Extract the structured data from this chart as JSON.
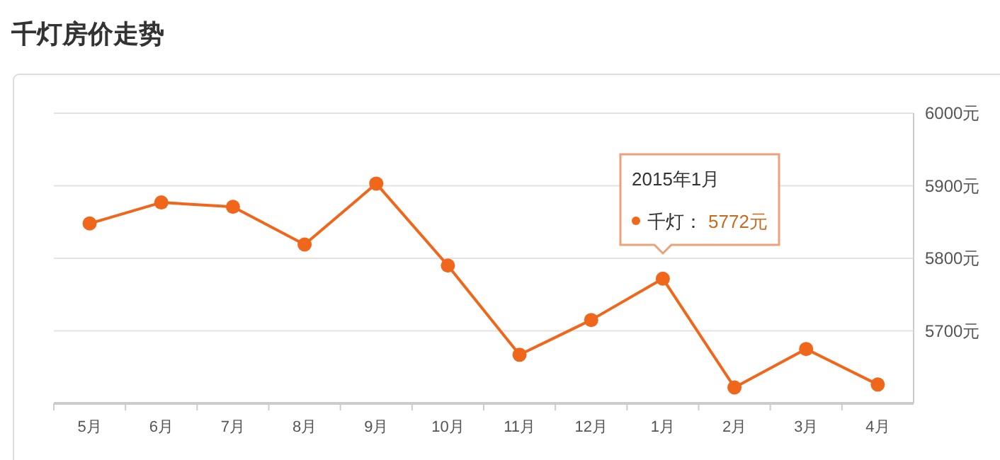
{
  "chart_data": {
    "type": "line",
    "title": "千灯房价走势",
    "categories": [
      "5月",
      "6月",
      "7月",
      "8月",
      "9月",
      "10月",
      "11月",
      "12月",
      "1月",
      "2月",
      "3月",
      "4月"
    ],
    "series": [
      {
        "color": "#f0661a",
        "values": [
          5848,
          5877,
          5871,
          5819,
          5903,
          5790,
          5667,
          5715,
          5772,
          5622,
          5675,
          5626
        ]
      }
    ],
    "ylim": [
      5600,
      6000
    ],
    "yticks": [
      {
        "value": 5600,
        "label": null
      },
      {
        "value": 5700,
        "label": "5700元"
      },
      {
        "value": 5800,
        "label": "5800元"
      },
      {
        "value": 5900,
        "label": "5900元"
      },
      {
        "value": 6000,
        "label": "6000元"
      }
    ],
    "grid": "y",
    "marker": "circle",
    "line_style": "solid",
    "annotations": [
      "2015年1月",
      "千灯：",
      "5772元"
    ]
  }
}
